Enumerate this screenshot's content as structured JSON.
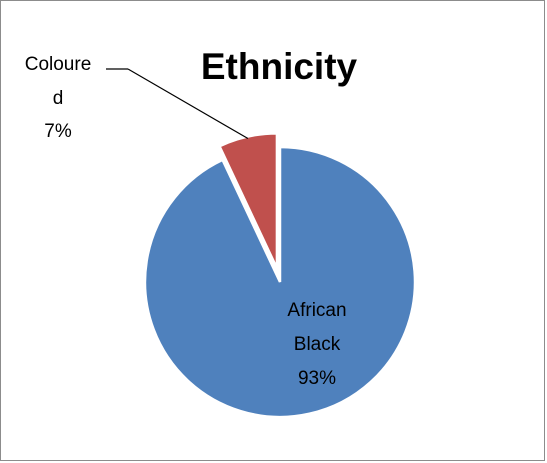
{
  "chart_data": {
    "type": "pie",
    "title": "Ethnicity",
    "slices": [
      {
        "name": "African Black",
        "value": 93,
        "label_lines": [
          "African",
          "Black",
          "93%"
        ],
        "color": "#4f81bd"
      },
      {
        "name": "Coloured",
        "value": 7,
        "label_lines": [
          "Coloure",
          "d",
          "7%"
        ],
        "color": "#c0504d"
      }
    ]
  }
}
